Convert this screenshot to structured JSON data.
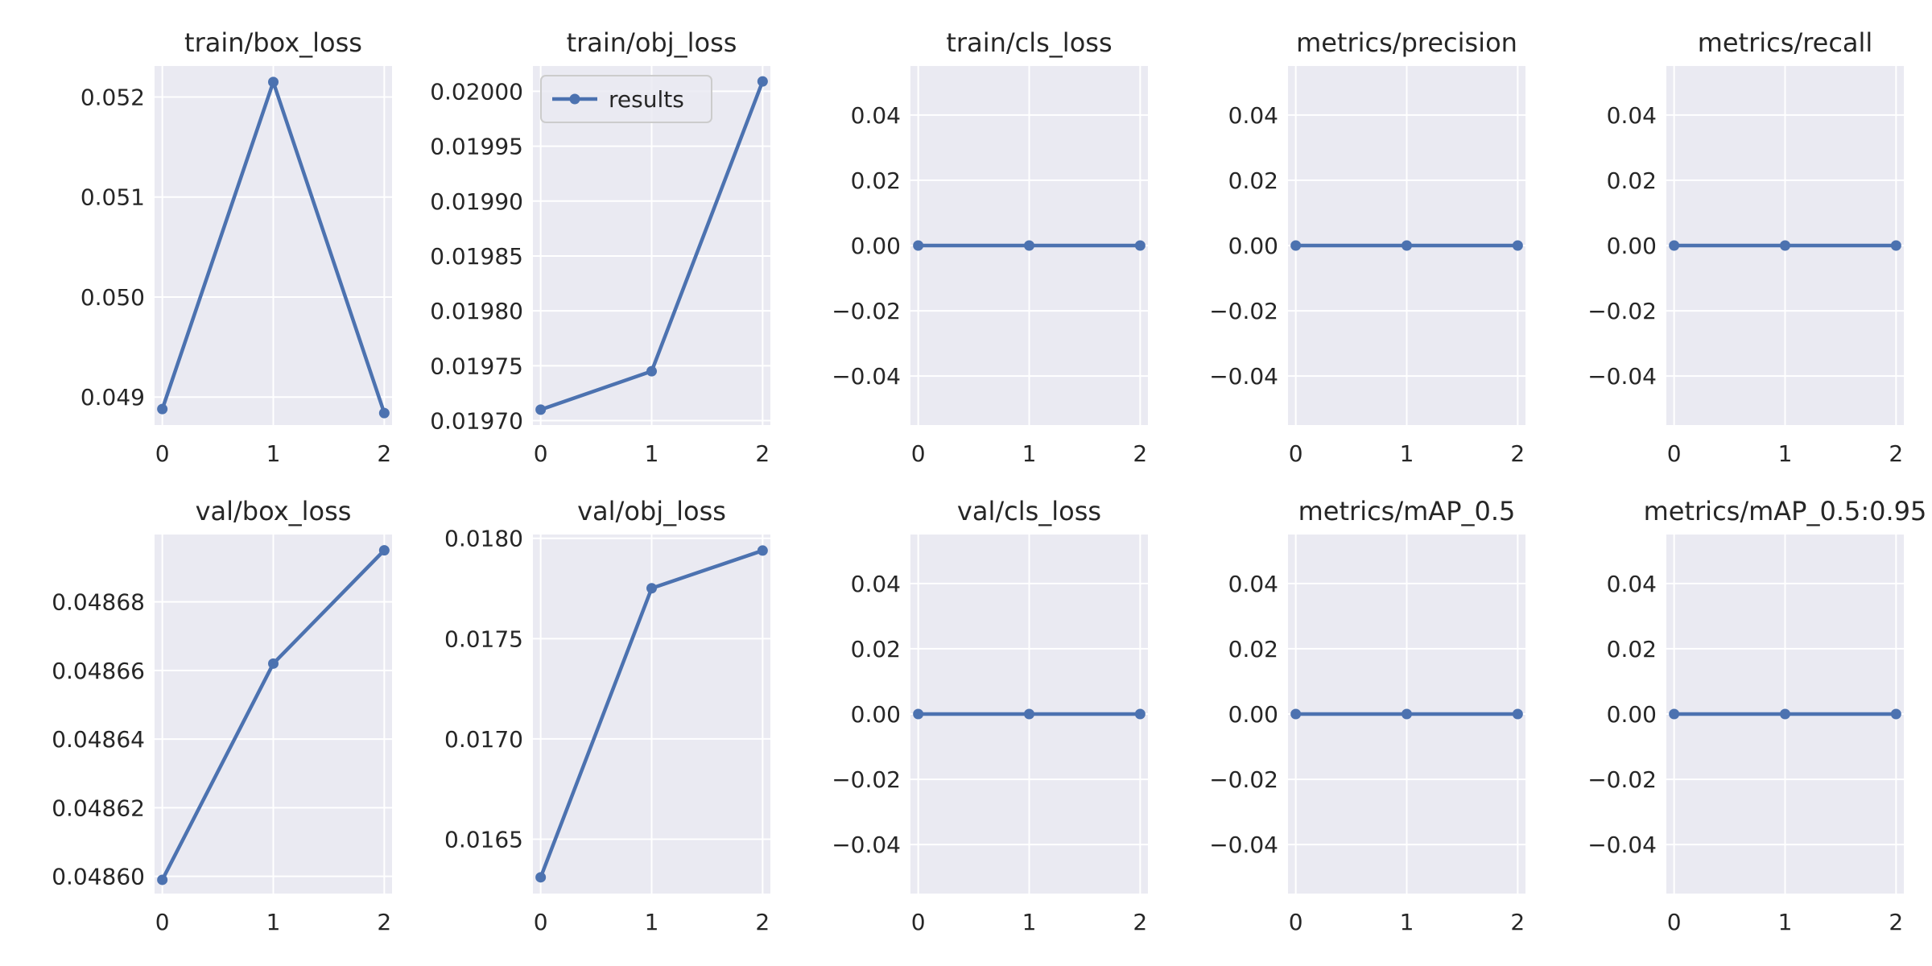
{
  "style": {
    "panel_bg": "#EAEAF2",
    "grid_color": "#FFFFFF",
    "line_color": "#4C72B0",
    "text_color": "#262626"
  },
  "chart_data": [
    {
      "type": "line",
      "title": "train/box_loss",
      "x": [
        0,
        1,
        2
      ],
      "series": [
        {
          "values": [
            0.04888,
            0.05215,
            0.04884
          ]
        }
      ],
      "xlim": [
        -0.07,
        2.07
      ],
      "ylim": [
        0.04872,
        0.05231
      ],
      "yticks": [
        0.049,
        0.05,
        0.051,
        0.052
      ],
      "ytick_labels": [
        "0.049",
        "0.050",
        "0.051",
        "0.052"
      ],
      "xticks": [
        0,
        1,
        2
      ],
      "xtick_labels": [
        "0",
        "1",
        "2"
      ],
      "grid": true
    },
    {
      "type": "line",
      "title": "train/obj_loss",
      "x": [
        0,
        1,
        2
      ],
      "series": [
        {
          "name": "results",
          "values": [
            0.01971,
            0.019745,
            0.020009
          ]
        }
      ],
      "xlim": [
        -0.07,
        2.07
      ],
      "ylim": [
        0.019696,
        0.020023
      ],
      "yticks": [
        0.0197,
        0.01975,
        0.0198,
        0.01985,
        0.0199,
        0.01995,
        0.02
      ],
      "ytick_labels": [
        "0.01970",
        "0.01975",
        "0.01980",
        "0.01985",
        "0.01990",
        "0.01995",
        "0.02000"
      ],
      "xticks": [
        0,
        1,
        2
      ],
      "xtick_labels": [
        "0",
        "1",
        "2"
      ],
      "grid": true,
      "legend": "top-left"
    },
    {
      "type": "line",
      "title": "train/cls_loss",
      "x": [
        0,
        1,
        2
      ],
      "series": [
        {
          "values": [
            0,
            0,
            0
          ]
        }
      ],
      "xlim": [
        -0.07,
        2.07
      ],
      "ylim": [
        -0.055,
        0.055
      ],
      "yticks": [
        -0.04,
        -0.02,
        0.0,
        0.02,
        0.04
      ],
      "ytick_labels": [
        "−0.04",
        "−0.02",
        "0.00",
        "0.02",
        "0.04"
      ],
      "xticks": [
        0,
        1,
        2
      ],
      "xtick_labels": [
        "0",
        "1",
        "2"
      ],
      "grid": true
    },
    {
      "type": "line",
      "title": "metrics/precision",
      "x": [
        0,
        1,
        2
      ],
      "series": [
        {
          "values": [
            0,
            0,
            0
          ]
        }
      ],
      "xlim": [
        -0.07,
        2.07
      ],
      "ylim": [
        -0.055,
        0.055
      ],
      "yticks": [
        -0.04,
        -0.02,
        0.0,
        0.02,
        0.04
      ],
      "ytick_labels": [
        "−0.04",
        "−0.02",
        "0.00",
        "0.02",
        "0.04"
      ],
      "xticks": [
        0,
        1,
        2
      ],
      "xtick_labels": [
        "0",
        "1",
        "2"
      ],
      "grid": true
    },
    {
      "type": "line",
      "title": "metrics/recall",
      "x": [
        0,
        1,
        2
      ],
      "series": [
        {
          "values": [
            0,
            0,
            0
          ]
        }
      ],
      "xlim": [
        -0.07,
        2.07
      ],
      "ylim": [
        -0.055,
        0.055
      ],
      "yticks": [
        -0.04,
        -0.02,
        0.0,
        0.02,
        0.04
      ],
      "ytick_labels": [
        "−0.04",
        "−0.02",
        "0.00",
        "0.02",
        "0.04"
      ],
      "xticks": [
        0,
        1,
        2
      ],
      "xtick_labels": [
        "0",
        "1",
        "2"
      ],
      "grid": true
    },
    {
      "type": "line",
      "title": "val/box_loss",
      "x": [
        0,
        1,
        2
      ],
      "series": [
        {
          "values": [
            0.048599,
            0.048662,
            0.048695
          ]
        }
      ],
      "xlim": [
        -0.07,
        2.07
      ],
      "ylim": [
        0.048595,
        0.0486996
      ],
      "yticks": [
        0.0486,
        0.04862,
        0.04864,
        0.04866,
        0.04868
      ],
      "ytick_labels": [
        "0.04860",
        "0.04862",
        "0.04864",
        "0.04866",
        "0.04868"
      ],
      "xticks": [
        0,
        1,
        2
      ],
      "xtick_labels": [
        "0",
        "1",
        "2"
      ],
      "grid": true
    },
    {
      "type": "line",
      "title": "val/obj_loss",
      "x": [
        0,
        1,
        2
      ],
      "series": [
        {
          "values": [
            0.01631,
            0.017751,
            0.017939
          ]
        }
      ],
      "xlim": [
        -0.07,
        2.07
      ],
      "ylim": [
        0.016229,
        0.018019
      ],
      "yticks": [
        0.0165,
        0.017,
        0.0175,
        0.018
      ],
      "ytick_labels": [
        "0.0165",
        "0.0170",
        "0.0175",
        "0.0180"
      ],
      "xticks": [
        0,
        1,
        2
      ],
      "xtick_labels": [
        "0",
        "1",
        "2"
      ],
      "grid": true
    },
    {
      "type": "line",
      "title": "val/cls_loss",
      "x": [
        0,
        1,
        2
      ],
      "series": [
        {
          "values": [
            0,
            0,
            0
          ]
        }
      ],
      "xlim": [
        -0.07,
        2.07
      ],
      "ylim": [
        -0.055,
        0.055
      ],
      "yticks": [
        -0.04,
        -0.02,
        0.0,
        0.02,
        0.04
      ],
      "ytick_labels": [
        "−0.04",
        "−0.02",
        "0.00",
        "0.02",
        "0.04"
      ],
      "xticks": [
        0,
        1,
        2
      ],
      "xtick_labels": [
        "0",
        "1",
        "2"
      ],
      "grid": true
    },
    {
      "type": "line",
      "title": "metrics/mAP_0.5",
      "x": [
        0,
        1,
        2
      ],
      "series": [
        {
          "values": [
            0,
            0,
            0
          ]
        }
      ],
      "xlim": [
        -0.07,
        2.07
      ],
      "ylim": [
        -0.055,
        0.055
      ],
      "yticks": [
        -0.04,
        -0.02,
        0.0,
        0.02,
        0.04
      ],
      "ytick_labels": [
        "−0.04",
        "−0.02",
        "0.00",
        "0.02",
        "0.04"
      ],
      "xticks": [
        0,
        1,
        2
      ],
      "xtick_labels": [
        "0",
        "1",
        "2"
      ],
      "grid": true
    },
    {
      "type": "line",
      "title": "metrics/mAP_0.5:0.95",
      "x": [
        0,
        1,
        2
      ],
      "series": [
        {
          "values": [
            0,
            0,
            0
          ]
        }
      ],
      "xlim": [
        -0.07,
        2.07
      ],
      "ylim": [
        -0.055,
        0.055
      ],
      "yticks": [
        -0.04,
        -0.02,
        0.0,
        0.02,
        0.04
      ],
      "ytick_labels": [
        "−0.04",
        "−0.02",
        "0.00",
        "0.02",
        "0.04"
      ],
      "xticks": [
        0,
        1,
        2
      ],
      "xtick_labels": [
        "0",
        "1",
        "2"
      ],
      "grid": true
    }
  ]
}
